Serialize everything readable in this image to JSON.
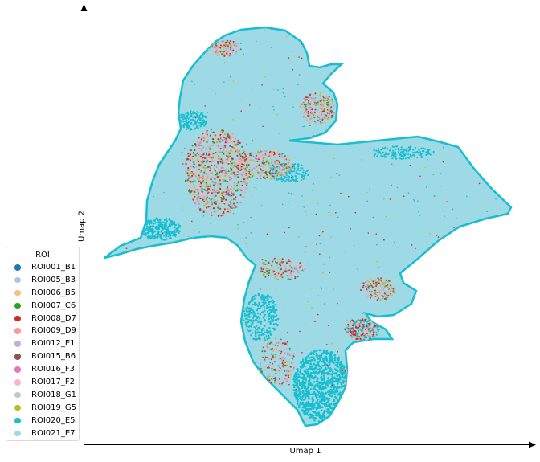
{
  "chart_data": {
    "type": "scatter",
    "xlabel": "Umap 1",
    "ylabel": "Umap 2",
    "grid": false,
    "legend_placement": "lower-left",
    "legend": {
      "title": "ROI",
      "entries": [
        {
          "label": "ROI001_B1",
          "color": "#1f77b4"
        },
        {
          "label": "ROI005_B3",
          "color": "#aec7e8"
        },
        {
          "label": "ROI006_B5",
          "color": "#ffbb78"
        },
        {
          "label": "ROI007_C6",
          "color": "#2ca02c"
        },
        {
          "label": "ROI008_D7",
          "color": "#d62728"
        },
        {
          "label": "ROI009_D9",
          "color": "#ff9896"
        },
        {
          "label": "ROI012_E1",
          "color": "#c5b0d5"
        },
        {
          "label": "ROI015_B6",
          "color": "#8c564b"
        },
        {
          "label": "ROI016_F3",
          "color": "#e377c2"
        },
        {
          "label": "ROI017_F2",
          "color": "#f7b6d2"
        },
        {
          "label": "ROI018_G1",
          "color": "#c7c7c7"
        },
        {
          "label": "ROI019_G5",
          "color": "#bcbd22"
        },
        {
          "label": "ROI020_E5",
          "color": "#17becf"
        },
        {
          "label": "ROI021_E7",
          "color": "#9edae5"
        }
      ]
    },
    "dominant_series": "ROI021_E7",
    "secondary_series": "ROI020_E5"
  }
}
